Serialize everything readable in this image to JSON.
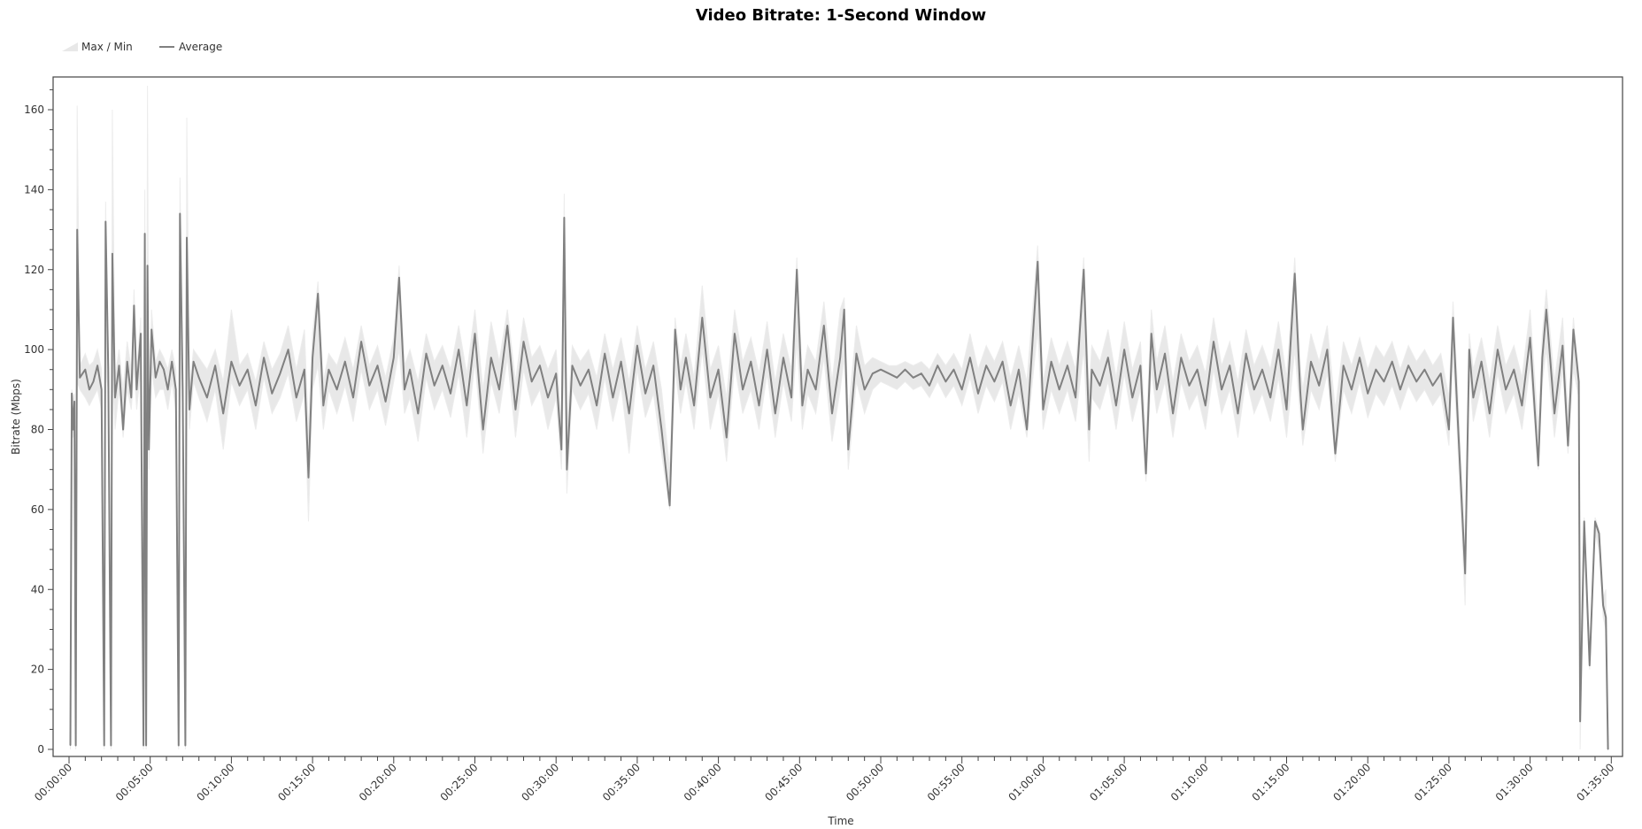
{
  "chart_data": {
    "type": "area",
    "title": "Video Bitrate: 1-Second Window",
    "xlabel": "Time",
    "ylabel": "Bitrate (Mbps)",
    "ylim": [
      0,
      168
    ],
    "xlim": [
      "00:00:00",
      "01:35:30"
    ],
    "y_ticks": [
      0,
      20,
      40,
      60,
      80,
      100,
      120,
      140,
      160
    ],
    "x_ticks": [
      "00:00:00",
      "00:05:00",
      "00:10:00",
      "00:15:00",
      "00:20:00",
      "00:25:00",
      "00:30:00",
      "00:35:00",
      "00:40:00",
      "00:45:00",
      "00:50:00",
      "00:55:00",
      "01:00:00",
      "01:05:00",
      "01:10:00",
      "01:15:00",
      "01:20:00",
      "01:25:00",
      "01:30:00",
      "01:35:00"
    ],
    "grid": false,
    "legend": {
      "placement": "top-left",
      "entries": [
        {
          "name": "Max / Min",
          "kind": "band",
          "color": "#e8e8e8"
        },
        {
          "name": "Average",
          "kind": "line",
          "color": "#808080"
        }
      ]
    },
    "columns": [
      "time",
      "average",
      "min",
      "max"
    ],
    "points": [
      [
        "00:00:05",
        1,
        0,
        2
      ],
      [
        "00:00:10",
        89,
        80,
        90
      ],
      [
        "00:00:15",
        80,
        78,
        88
      ],
      [
        "00:00:20",
        87,
        80,
        89
      ],
      [
        "00:00:25",
        1,
        0,
        2
      ],
      [
        "00:00:30",
        130,
        92,
        161
      ],
      [
        "00:00:40",
        93,
        90,
        96
      ],
      [
        "00:01:00",
        95,
        88,
        99
      ],
      [
        "00:01:15",
        90,
        86,
        96
      ],
      [
        "00:01:30",
        92,
        88,
        97
      ],
      [
        "00:01:45",
        96,
        90,
        100
      ],
      [
        "00:02:00",
        90,
        85,
        95
      ],
      [
        "00:02:10",
        1,
        0,
        2
      ],
      [
        "00:02:15",
        132,
        95,
        137
      ],
      [
        "00:02:25",
        95,
        90,
        97
      ],
      [
        "00:02:35",
        1,
        0,
        3
      ],
      [
        "00:02:40",
        124,
        95,
        160
      ],
      [
        "00:02:50",
        88,
        80,
        93
      ],
      [
        "00:03:05",
        96,
        90,
        100
      ],
      [
        "00:03:20",
        80,
        78,
        90
      ],
      [
        "00:03:35",
        97,
        90,
        102
      ],
      [
        "00:03:50",
        88,
        85,
        95
      ],
      [
        "00:04:00",
        111,
        95,
        115
      ],
      [
        "00:04:10",
        90,
        85,
        95
      ],
      [
        "00:04:25",
        104,
        95,
        108
      ],
      [
        "00:04:35",
        1,
        0,
        2
      ],
      [
        "00:04:40",
        129,
        100,
        140
      ],
      [
        "00:04:45",
        1,
        0,
        3
      ],
      [
        "00:04:50",
        121,
        100,
        166
      ],
      [
        "00:04:55",
        75,
        70,
        80
      ],
      [
        "00:05:05",
        105,
        95,
        110
      ],
      [
        "00:05:20",
        93,
        88,
        97
      ],
      [
        "00:05:35",
        97,
        90,
        100
      ],
      [
        "00:05:50",
        95,
        90,
        98
      ],
      [
        "00:06:05",
        90,
        85,
        95
      ],
      [
        "00:06:20",
        97,
        92,
        100
      ],
      [
        "00:06:35",
        90,
        85,
        95
      ],
      [
        "00:06:45",
        1,
        0,
        2
      ],
      [
        "00:06:50",
        134,
        100,
        143
      ],
      [
        "00:07:00",
        90,
        85,
        95
      ],
      [
        "00:07:10",
        1,
        0,
        2
      ],
      [
        "00:07:15",
        128,
        100,
        158
      ],
      [
        "00:07:25",
        85,
        80,
        90
      ],
      [
        "00:07:40",
        97,
        92,
        100
      ],
      [
        "00:08:00",
        93,
        88,
        98
      ],
      [
        "00:08:30",
        88,
        82,
        95
      ],
      [
        "00:09:00",
        96,
        90,
        100
      ],
      [
        "00:09:30",
        84,
        75,
        92
      ],
      [
        "00:10:00",
        97,
        92,
        110
      ],
      [
        "00:10:30",
        91,
        86,
        96
      ],
      [
        "00:11:00",
        95,
        90,
        99
      ],
      [
        "00:11:30",
        86,
        80,
        92
      ],
      [
        "00:12:00",
        98,
        93,
        102
      ],
      [
        "00:12:30",
        89,
        84,
        95
      ],
      [
        "00:13:00",
        94,
        88,
        99
      ],
      [
        "00:13:30",
        100,
        94,
        106
      ],
      [
        "00:14:00",
        88,
        82,
        95
      ],
      [
        "00:14:30",
        95,
        89,
        105
      ],
      [
        "00:14:45",
        68,
        57,
        80
      ],
      [
        "00:15:00",
        98,
        90,
        104
      ],
      [
        "00:15:20",
        114,
        96,
        117
      ],
      [
        "00:15:40",
        86,
        80,
        92
      ],
      [
        "00:16:00",
        95,
        90,
        99
      ],
      [
        "00:16:30",
        90,
        84,
        96
      ],
      [
        "00:17:00",
        97,
        91,
        103
      ],
      [
        "00:17:30",
        88,
        82,
        95
      ],
      [
        "00:18:00",
        102,
        95,
        106
      ],
      [
        "00:18:30",
        91,
        85,
        96
      ],
      [
        "00:19:00",
        96,
        90,
        101
      ],
      [
        "00:19:30",
        87,
        81,
        93
      ],
      [
        "00:20:00",
        98,
        92,
        103
      ],
      [
        "00:20:20",
        118,
        100,
        121
      ],
      [
        "00:20:40",
        90,
        84,
        96
      ],
      [
        "00:21:00",
        95,
        88,
        100
      ],
      [
        "00:21:30",
        84,
        77,
        92
      ],
      [
        "00:22:00",
        99,
        93,
        104
      ],
      [
        "00:22:30",
        91,
        85,
        97
      ],
      [
        "00:23:00",
        96,
        90,
        101
      ],
      [
        "00:23:30",
        89,
        83,
        95
      ],
      [
        "00:24:00",
        100,
        94,
        106
      ],
      [
        "00:24:30",
        86,
        78,
        94
      ],
      [
        "00:25:00",
        104,
        97,
        110
      ],
      [
        "00:25:30",
        80,
        74,
        90
      ],
      [
        "00:26:00",
        98,
        92,
        107
      ],
      [
        "00:26:30",
        90,
        84,
        97
      ],
      [
        "00:27:00",
        106,
        98,
        110
      ],
      [
        "00:27:30",
        85,
        78,
        92
      ],
      [
        "00:28:00",
        102,
        95,
        108
      ],
      [
        "00:28:30",
        92,
        86,
        98
      ],
      [
        "00:29:00",
        96,
        90,
        101
      ],
      [
        "00:29:30",
        88,
        80,
        95
      ],
      [
        "00:30:00",
        94,
        88,
        100
      ],
      [
        "00:30:20",
        75,
        70,
        82
      ],
      [
        "00:30:30",
        133,
        100,
        139
      ],
      [
        "00:30:40",
        70,
        64,
        80
      ],
      [
        "00:31:00",
        96,
        90,
        101
      ],
      [
        "00:31:30",
        91,
        85,
        97
      ],
      [
        "00:32:00",
        95,
        89,
        100
      ],
      [
        "00:32:30",
        86,
        80,
        93
      ],
      [
        "00:33:00",
        99,
        93,
        104
      ],
      [
        "00:33:30",
        88,
        82,
        95
      ],
      [
        "00:34:00",
        97,
        91,
        103
      ],
      [
        "00:34:30",
        84,
        74,
        92
      ],
      [
        "00:35:00",
        101,
        95,
        106
      ],
      [
        "00:35:30",
        89,
        83,
        95
      ],
      [
        "00:36:00",
        96,
        89,
        102
      ],
      [
        "00:36:30",
        80,
        74,
        90
      ],
      [
        "00:37:00",
        61,
        60,
        70
      ],
      [
        "00:37:20",
        105,
        95,
        108
      ],
      [
        "00:37:40",
        90,
        84,
        96
      ],
      [
        "00:38:00",
        98,
        92,
        104
      ],
      [
        "00:38:30",
        86,
        80,
        93
      ],
      [
        "00:39:00",
        108,
        100,
        116
      ],
      [
        "00:39:30",
        88,
        80,
        95
      ],
      [
        "00:40:00",
        95,
        89,
        101
      ],
      [
        "00:40:30",
        78,
        72,
        88
      ],
      [
        "00:41:00",
        104,
        96,
        110
      ],
      [
        "00:41:30",
        90,
        84,
        97
      ],
      [
        "00:42:00",
        97,
        90,
        103
      ],
      [
        "00:42:30",
        86,
        80,
        94
      ],
      [
        "00:43:00",
        100,
        94,
        107
      ],
      [
        "00:43:30",
        84,
        78,
        92
      ],
      [
        "00:44:00",
        98,
        92,
        104
      ],
      [
        "00:44:30",
        88,
        82,
        95
      ],
      [
        "00:44:50",
        120,
        102,
        123
      ],
      [
        "00:45:10",
        86,
        80,
        93
      ],
      [
        "00:45:30",
        95,
        89,
        101
      ],
      [
        "00:46:00",
        90,
        84,
        97
      ],
      [
        "00:46:30",
        106,
        98,
        112
      ],
      [
        "00:47:00",
        84,
        77,
        92
      ],
      [
        "00:47:30",
        98,
        90,
        110
      ],
      [
        "00:47:45",
        110,
        98,
        113
      ],
      [
        "00:48:00",
        75,
        70,
        84
      ],
      [
        "00:48:30",
        99,
        92,
        106
      ],
      [
        "00:49:00",
        90,
        84,
        96
      ],
      [
        "00:49:30",
        94,
        90,
        98
      ],
      [
        "00:50:00",
        95,
        92,
        97
      ],
      [
        "00:50:30",
        94,
        91,
        96
      ],
      [
        "00:51:00",
        93,
        90,
        96
      ],
      [
        "00:51:30",
        95,
        92,
        97
      ],
      [
        "00:52:00",
        93,
        90,
        96
      ],
      [
        "00:52:30",
        94,
        91,
        97
      ],
      [
        "00:53:00",
        91,
        88,
        95
      ],
      [
        "00:53:30",
        96,
        92,
        99
      ],
      [
        "00:54:00",
        92,
        88,
        96
      ],
      [
        "00:54:30",
        95,
        91,
        99
      ],
      [
        "00:55:00",
        90,
        86,
        95
      ],
      [
        "00:55:30",
        98,
        93,
        104
      ],
      [
        "00:56:00",
        89,
        84,
        95
      ],
      [
        "00:56:30",
        96,
        91,
        101
      ],
      [
        "00:57:00",
        92,
        87,
        97
      ],
      [
        "00:57:30",
        97,
        92,
        102
      ],
      [
        "00:58:00",
        86,
        80,
        93
      ],
      [
        "00:58:30",
        95,
        89,
        101
      ],
      [
        "00:59:00",
        80,
        78,
        92
      ],
      [
        "00:59:40",
        122,
        105,
        126
      ],
      [
        "01:00:00",
        85,
        80,
        92
      ],
      [
        "01:00:30",
        97,
        90,
        103
      ],
      [
        "01:01:00",
        90,
        84,
        96
      ],
      [
        "01:01:30",
        96,
        90,
        102
      ],
      [
        "01:02:00",
        88,
        82,
        95
      ],
      [
        "01:02:30",
        120,
        100,
        123
      ],
      [
        "01:02:50",
        80,
        72,
        90
      ],
      [
        "01:03:00",
        95,
        88,
        101
      ],
      [
        "01:03:30",
        91,
        85,
        97
      ],
      [
        "01:04:00",
        98,
        92,
        105
      ],
      [
        "01:04:30",
        86,
        80,
        93
      ],
      [
        "01:05:00",
        100,
        94,
        107
      ],
      [
        "01:05:30",
        88,
        82,
        95
      ],
      [
        "01:06:00",
        96,
        90,
        102
      ],
      [
        "01:06:20",
        69,
        67,
        78
      ],
      [
        "01:06:40",
        104,
        95,
        110
      ],
      [
        "01:07:00",
        90,
        84,
        97
      ],
      [
        "01:07:30",
        99,
        92,
        106
      ],
      [
        "01:08:00",
        84,
        78,
        92
      ],
      [
        "01:08:30",
        98,
        92,
        104
      ],
      [
        "01:09:00",
        91,
        85,
        97
      ],
      [
        "01:09:30",
        95,
        89,
        101
      ],
      [
        "01:10:00",
        86,
        80,
        94
      ],
      [
        "01:10:30",
        102,
        95,
        108
      ],
      [
        "01:11:00",
        90,
        84,
        96
      ],
      [
        "01:11:30",
        96,
        90,
        102
      ],
      [
        "01:12:00",
        84,
        78,
        92
      ],
      [
        "01:12:30",
        99,
        93,
        105
      ],
      [
        "01:13:00",
        90,
        84,
        96
      ],
      [
        "01:13:30",
        95,
        89,
        101
      ],
      [
        "01:14:00",
        88,
        82,
        95
      ],
      [
        "01:14:30",
        100,
        93,
        107
      ],
      [
        "01:15:00",
        85,
        78,
        93
      ],
      [
        "01:15:30",
        119,
        100,
        123
      ],
      [
        "01:15:50",
        90,
        84,
        96
      ],
      [
        "01:16:00",
        80,
        76,
        90
      ],
      [
        "01:16:30",
        97,
        90,
        104
      ],
      [
        "01:17:00",
        91,
        85,
        97
      ],
      [
        "01:17:30",
        100,
        94,
        106
      ],
      [
        "01:18:00",
        74,
        72,
        85
      ],
      [
        "01:18:30",
        96,
        90,
        102
      ],
      [
        "01:19:00",
        90,
        84,
        96
      ],
      [
        "01:19:30",
        98,
        92,
        103
      ],
      [
        "01:20:00",
        89,
        83,
        95
      ],
      [
        "01:20:30",
        95,
        89,
        101
      ],
      [
        "01:21:00",
        92,
        86,
        98
      ],
      [
        "01:21:30",
        97,
        91,
        102
      ],
      [
        "01:22:00",
        90,
        85,
        95
      ],
      [
        "01:22:30",
        96,
        91,
        101
      ],
      [
        "01:23:00",
        92,
        87,
        97
      ],
      [
        "01:23:30",
        95,
        90,
        100
      ],
      [
        "01:24:00",
        91,
        86,
        96
      ],
      [
        "01:24:30",
        94,
        89,
        99
      ],
      [
        "01:25:00",
        80,
        76,
        88
      ],
      [
        "01:25:15",
        108,
        98,
        112
      ],
      [
        "01:25:30",
        86,
        80,
        93
      ],
      [
        "01:26:00",
        44,
        36,
        50
      ],
      [
        "01:26:15",
        100,
        94,
        104
      ],
      [
        "01:26:30",
        88,
        82,
        95
      ],
      [
        "01:27:00",
        97,
        91,
        103
      ],
      [
        "01:27:30",
        84,
        78,
        92
      ],
      [
        "01:28:00",
        100,
        94,
        106
      ],
      [
        "01:28:30",
        90,
        84,
        96
      ],
      [
        "01:29:00",
        95,
        89,
        101
      ],
      [
        "01:29:30",
        86,
        80,
        93
      ],
      [
        "01:30:00",
        103,
        96,
        110
      ],
      [
        "01:30:30",
        71,
        70,
        80
      ],
      [
        "01:30:45",
        98,
        92,
        104
      ],
      [
        "01:31:00",
        110,
        100,
        115
      ],
      [
        "01:31:30",
        84,
        78,
        92
      ],
      [
        "01:32:00",
        101,
        95,
        108
      ],
      [
        "01:32:20",
        76,
        74,
        84
      ],
      [
        "01:32:40",
        105,
        95,
        108
      ],
      [
        "01:33:00",
        92,
        88,
        94
      ],
      [
        "01:33:05",
        7,
        0,
        20
      ],
      [
        "01:33:20",
        57,
        52,
        58
      ],
      [
        "01:33:40",
        21,
        20,
        25
      ],
      [
        "01:34:00",
        57,
        54,
        58
      ],
      [
        "01:34:15",
        54,
        50,
        55
      ],
      [
        "01:34:30",
        36,
        33,
        38
      ],
      [
        "01:34:40",
        33,
        30,
        40
      ],
      [
        "01:34:48",
        0,
        0,
        1
      ]
    ]
  }
}
